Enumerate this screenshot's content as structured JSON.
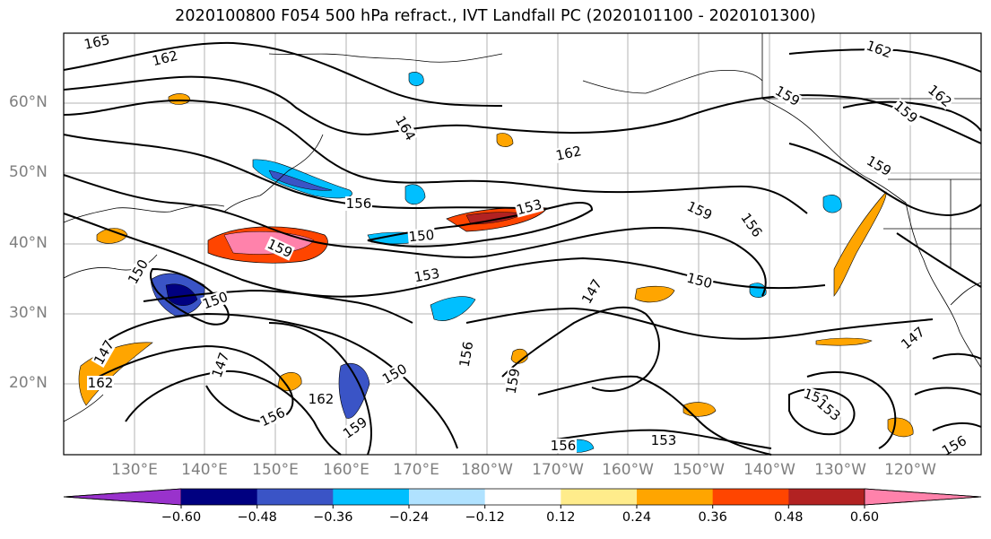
{
  "title": "2020100800 F054 500 hPa refract., IVT Landfall PC (2020101100 - 2020101300)",
  "map": {
    "lat_labels": [
      "60°N",
      "50°N",
      "40°N",
      "30°N",
      "20°N"
    ],
    "lon_labels": [
      "130°E",
      "140°E",
      "150°E",
      "160°E",
      "170°E",
      "180°W",
      "170°W",
      "160°W",
      "150°W",
      "140°W",
      "130°W",
      "120°W"
    ],
    "contour_labels": [
      "165",
      "162",
      "162",
      "164",
      "162",
      "159",
      "159",
      "156",
      "153",
      "150",
      "159",
      "156",
      "159",
      "153",
      "150",
      "147",
      "150",
      "147",
      "147",
      "150",
      "156",
      "159",
      "162",
      "159",
      "156",
      "150",
      "162",
      "159",
      "153",
      "153",
      "156",
      "147",
      "156",
      "162",
      "159"
    ]
  },
  "colorbar": {
    "tick_labels": [
      "−0.60",
      "−0.48",
      "−0.36",
      "−0.24",
      "−0.12",
      "0.12",
      "0.24",
      "0.36",
      "0.48",
      "0.60"
    ],
    "colors": [
      "#9932cc",
      "#000080",
      "#3a54c6",
      "#00bfff",
      "#b0e2ff",
      "#ffffff",
      "#ffec8b",
      "#ffa500",
      "#ff4500",
      "#b22222",
      "#ff82ab"
    ]
  }
}
